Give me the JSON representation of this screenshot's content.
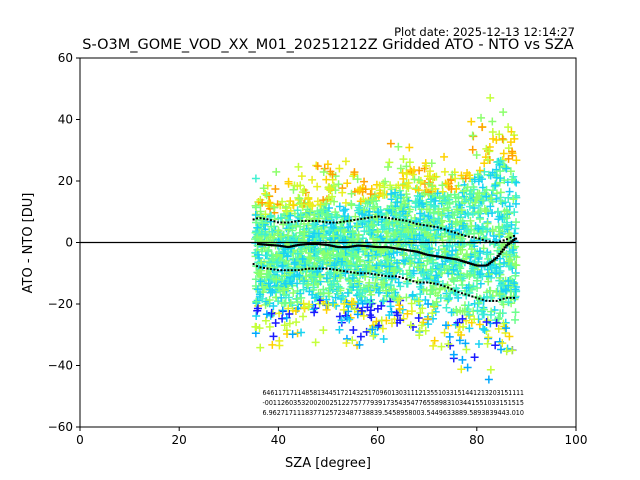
{
  "plot_date": "Plot date: 2025-12-13 12:14:27",
  "chart_data": {
    "type": "scatter",
    "title": "S-O3M_GOME_VOD_XX_M01_20251212Z Gridded ATO - NTO vs SZA",
    "xlabel": "SZA [degree]",
    "ylabel": "ATO - NTO [DU]",
    "xlim": [
      0,
      100
    ],
    "ylim": [
      -60,
      60
    ],
    "xticks": [
      "0",
      "20",
      "40",
      "60",
      "80",
      "100"
    ],
    "yticks": [
      "−60",
      "−40",
      "−20",
      "0",
      "20",
      "40",
      "60"
    ],
    "xtick_values": [
      0,
      20,
      40,
      60,
      80,
      100
    ],
    "ytick_values": [
      -60,
      -40,
      -20,
      0,
      20,
      40,
      60
    ],
    "zero_line": 0,
    "marker": "+",
    "palette": [
      "#1a1aff",
      "#00a8ff",
      "#19d3f3",
      "#40f0d0",
      "#6cff8c",
      "#8cff6c",
      "#c4ff3a",
      "#e8f020",
      "#ffd200",
      "#ffa000"
    ],
    "scatter_envelope": [
      {
        "sza": 35.5,
        "lower": -30,
        "upper": 20
      },
      {
        "sza": 40,
        "lower": -33,
        "upper": 21
      },
      {
        "sza": 45,
        "lower": -30,
        "upper": 23
      },
      {
        "sza": 50,
        "lower": -29,
        "upper": 25
      },
      {
        "sza": 55,
        "lower": -30,
        "upper": 25
      },
      {
        "sza": 60,
        "lower": -32,
        "upper": 27
      },
      {
        "sza": 65,
        "lower": -30,
        "upper": 32
      },
      {
        "sza": 70,
        "lower": -32,
        "upper": 30
      },
      {
        "sza": 75,
        "lower": -37,
        "upper": 32
      },
      {
        "sza": 80,
        "lower": -40,
        "upper": 40
      },
      {
        "sza": 85,
        "lower": -45,
        "upper": 48
      },
      {
        "sza": 88,
        "lower": -42,
        "upper": 40
      }
    ],
    "median": {
      "sza": [
        36,
        38,
        40,
        42,
        44,
        46,
        48,
        50,
        52,
        54,
        56,
        58,
        60,
        62,
        64,
        66,
        68,
        70,
        72,
        74,
        76,
        78,
        80,
        82,
        84,
        86,
        88
      ],
      "values": [
        -0.5,
        -0.8,
        -1,
        -1.5,
        -0.8,
        -0.5,
        -0.5,
        -0.8,
        -1.5,
        -1.5,
        -1,
        -1.2,
        -1.5,
        -1.5,
        -2,
        -2.5,
        -3,
        -4,
        -4.5,
        -5,
        -5.5,
        -6.5,
        -7.5,
        -7.5,
        -5,
        -1,
        1.5
      ]
    },
    "upper_quantile": {
      "sza": [
        35,
        36,
        38,
        40,
        42,
        44,
        46,
        48,
        50,
        52,
        54,
        56,
        58,
        60,
        62,
        64,
        66,
        68,
        70,
        72,
        74,
        76,
        78,
        80,
        82,
        84,
        86,
        88
      ],
      "values": [
        7.5,
        8,
        7.5,
        6.5,
        6.5,
        7,
        7,
        7,
        6.5,
        6.5,
        7,
        7.5,
        8,
        8.5,
        8,
        7.5,
        7,
        6,
        5.5,
        5,
        4,
        3,
        2,
        1.5,
        0.5,
        0,
        1,
        2.5
      ]
    },
    "lower_quantile": {
      "sza": [
        35,
        36,
        38,
        40,
        42,
        44,
        46,
        48,
        50,
        52,
        54,
        56,
        58,
        60,
        62,
        64,
        66,
        68,
        70,
        72,
        74,
        76,
        78,
        80,
        82,
        84,
        86,
        88
      ],
      "values": [
        -7,
        -8,
        -8.5,
        -9,
        -9,
        -9,
        -8.5,
        -8.5,
        -8.5,
        -9,
        -9.5,
        -10,
        -10,
        -10.5,
        -11,
        -11,
        -12,
        -13,
        -13,
        -13.5,
        -14.5,
        -16,
        -17,
        -18,
        -19,
        -19,
        -18,
        -18
      ]
    },
    "counts_annotation": {
      "rows": [
        "6461171711485813445172143251709601303111213551033151441213203151111",
        "-0011260353200200251227577793917354354776558983103441551033151515",
        "6.9627171118377125723487738839.5458958003.5449633889.5893839443.010"
      ]
    }
  }
}
